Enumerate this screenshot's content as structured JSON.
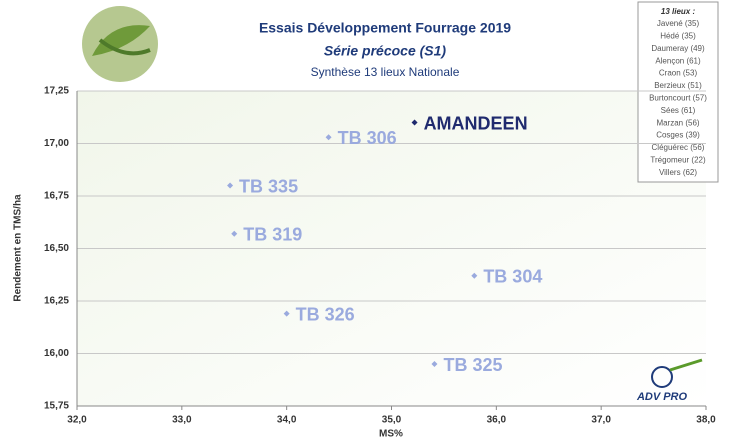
{
  "chart_data": {
    "type": "scatter",
    "title": "Essais Développement Fourrage 2019",
    "subtitle": "Série précoce (S1)",
    "description": "Synthèse 13 lieux Nationale",
    "xlabel": "MS%",
    "ylabel": "Rendement en TMS/ha",
    "labels": [
      "AMANDEEN",
      "TB 306",
      "TB 335",
      "TB 319",
      "TB 304",
      "TB 326",
      "TB 325"
    ],
    "x": [
      35.22,
      34.4,
      33.46,
      33.5,
      35.79,
      34.0,
      35.41
    ],
    "values": [
      17.1,
      17.03,
      16.8,
      16.57,
      16.37,
      16.19,
      15.95
    ],
    "colors": [
      "#1f2a6e",
      "#9aaade",
      "#9aaade",
      "#9aaade",
      "#9aaade",
      "#9aaade",
      "#9aaade"
    ],
    "xlim": [
      32.0,
      38.0
    ],
    "xticks": [
      {
        "value": 32,
        "label": "32,0"
      },
      {
        "value": 33,
        "label": "33,0"
      },
      {
        "value": 34,
        "label": "34,0"
      },
      {
        "value": 35,
        "label": "35,0"
      },
      {
        "value": 36,
        "label": "36,0"
      },
      {
        "value": 37,
        "label": "37,0"
      },
      {
        "value": 38,
        "label": "38,0"
      }
    ],
    "ylim": [
      15.75,
      17.25
    ],
    "yticks": [
      {
        "value": 15.75,
        "label": "15,75"
      },
      {
        "value": 16,
        "label": "16,00"
      },
      {
        "value": 16.25,
        "label": "16,25"
      },
      {
        "value": 16.5,
        "label": "16,50"
      },
      {
        "value": 16.75,
        "label": "16,75"
      },
      {
        "value": 17,
        "label": "17,00"
      },
      {
        "value": 17.25,
        "label": "17,25"
      }
    ],
    "grid": true,
    "sites_title": "13 lieux :",
    "sites": [
      "Javené (35)",
      "Hédé (35)",
      "Daumeray (49)",
      "Alençon (61)",
      "Craon (53)",
      "Berzieux (51)",
      "Burtoncourt (57)",
      "Sées (61)",
      "Marzan (56)",
      "Cosges (39)",
      "Cléguérec (56)",
      "Trégomeur (22)",
      "Villers (62)"
    ],
    "logo_text": "ADV PRO"
  }
}
